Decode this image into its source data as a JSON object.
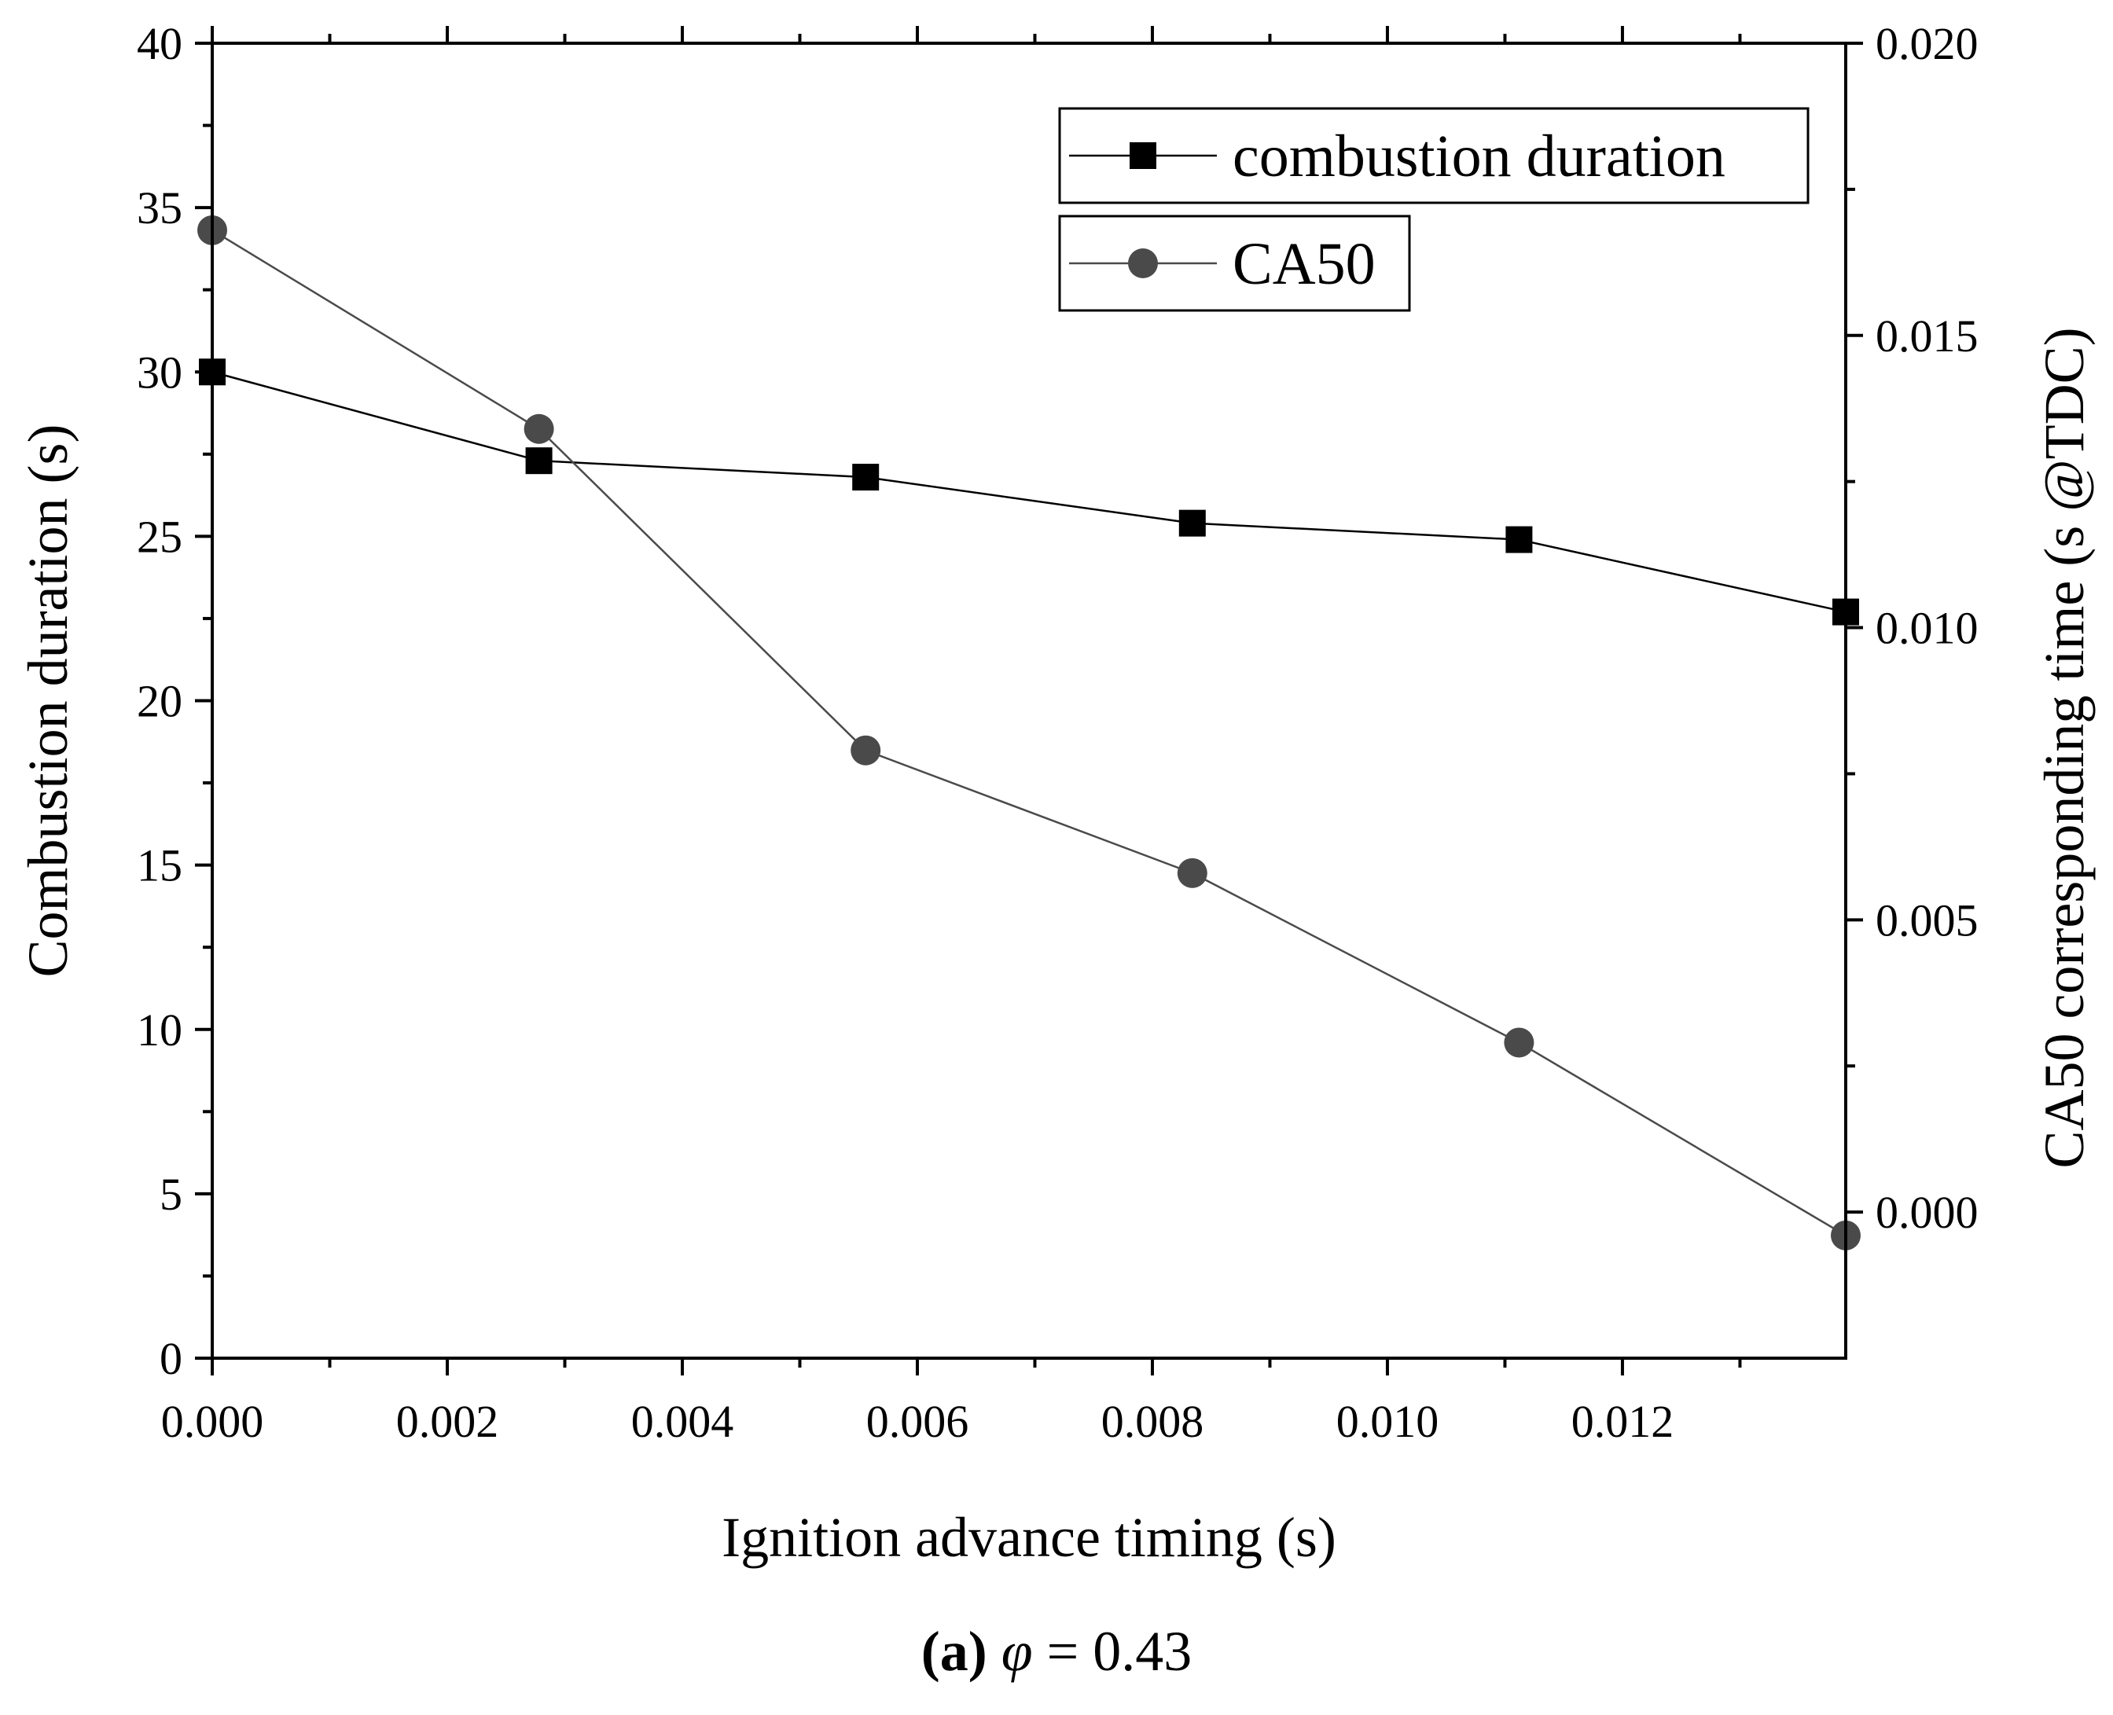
{
  "chart_data": {
    "type": "line",
    "x": [
      0.0,
      0.00278,
      0.00556,
      0.00834,
      0.01112,
      0.0139
    ],
    "xlabel": "Ignition advance timing (s)",
    "xlim": [
      0.0,
      0.0139
    ],
    "xticks": [
      0.0,
      0.002,
      0.004,
      0.006,
      0.008,
      0.01,
      0.012
    ],
    "xtick_labels": [
      "0.000",
      "0.002",
      "0.004",
      "0.006",
      "0.008",
      "0.010",
      "0.012"
    ],
    "ylabel": "Combustion duration (s)",
    "ylim": [
      0,
      40
    ],
    "yticks": [
      0,
      5,
      10,
      15,
      20,
      25,
      30,
      35,
      40
    ],
    "ytick_labels": [
      "0",
      "5",
      "10",
      "15",
      "20",
      "25",
      "30",
      "35",
      "40"
    ],
    "y2label": "CA50 corresponding time (s @TDC)",
    "y2lim": [
      -0.0025,
      0.02
    ],
    "y2ticks": [
      0.0,
      0.005,
      0.01,
      0.015,
      0.02
    ],
    "y2tick_labels": [
      "0.000",
      "0.005",
      "0.010",
      "0.015",
      "0.020"
    ],
    "series": [
      {
        "name": "combustion duration",
        "axis": "left",
        "marker": "square",
        "color": "#000000",
        "values": [
          30.0,
          27.3,
          26.8,
          25.4,
          24.9,
          22.7
        ]
      },
      {
        "name": "CA50",
        "axis": "right",
        "marker": "circle",
        "color": "#4a4a4a",
        "values": [
          0.0168,
          0.0134,
          0.0079,
          0.0058,
          0.0029,
          -0.0004
        ]
      }
    ],
    "legend_position": "top-right"
  },
  "caption": {
    "label": "(a)",
    "symbol": "φ",
    "expression": " = 0.43"
  }
}
